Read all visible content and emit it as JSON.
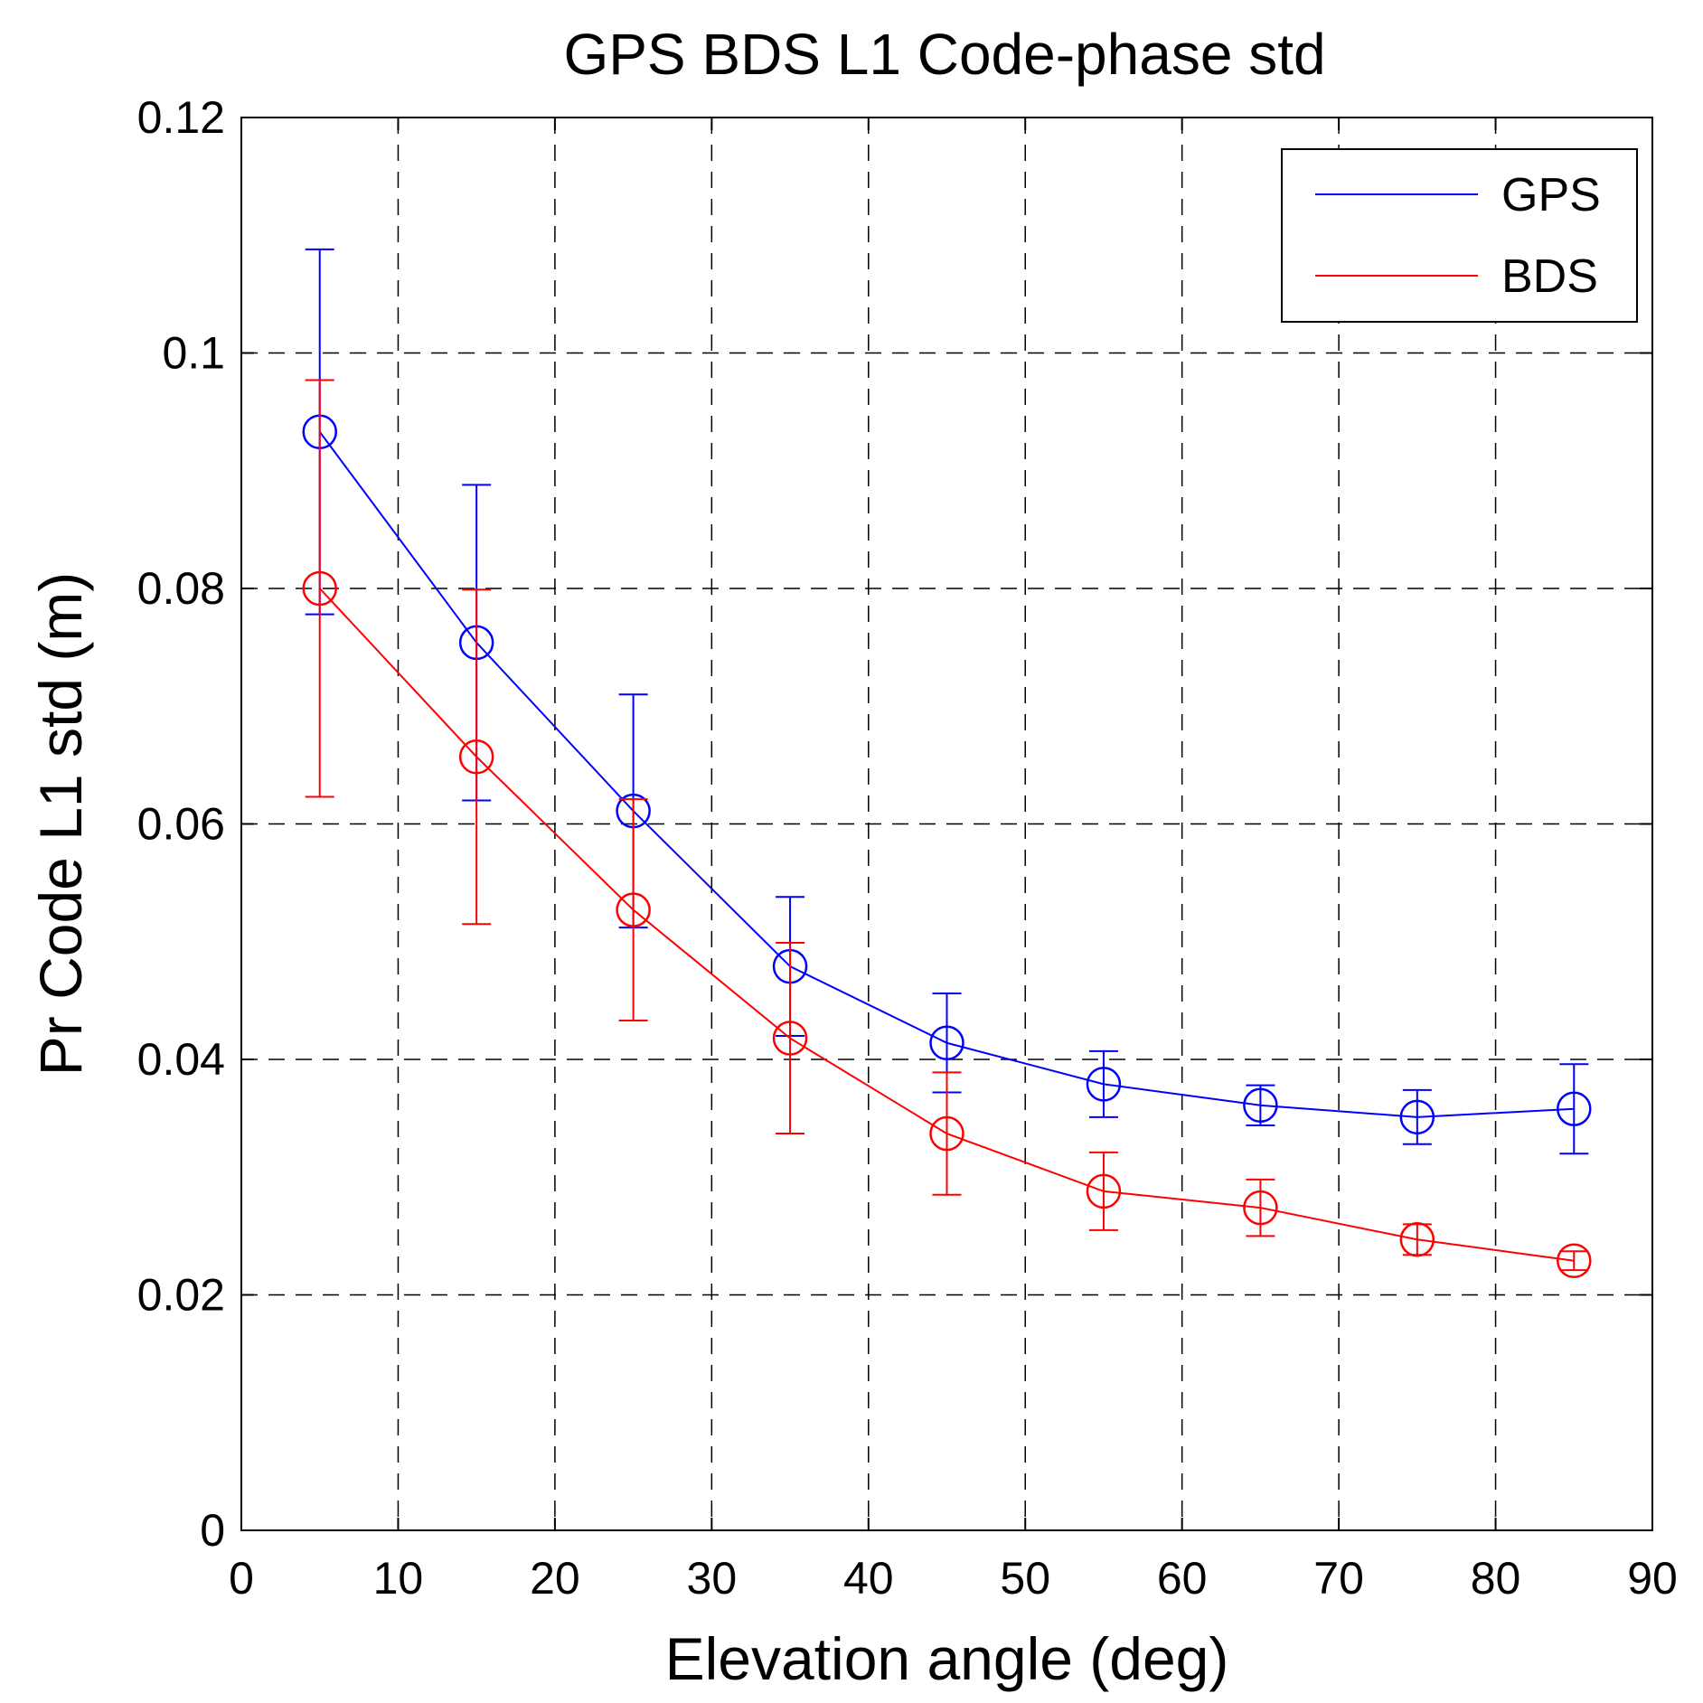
{
  "chart_data": {
    "type": "line",
    "title": "GPS BDS L1 Code-phase std",
    "xlabel": "Elevation angle (deg)",
    "ylabel": "Pr Code L1 std (m)",
    "xlim": [
      0,
      90
    ],
    "ylim": [
      0,
      0.12
    ],
    "xticks": [
      0,
      10,
      20,
      30,
      40,
      50,
      60,
      70,
      80,
      90
    ],
    "yticks": [
      0,
      0.02,
      0.04,
      0.06,
      0.08,
      0.1,
      0.12
    ],
    "xtick_labels": [
      "0",
      "10",
      "20",
      "30",
      "40",
      "50",
      "60",
      "70",
      "80",
      "90"
    ],
    "ytick_labels": [
      "0",
      "0.02",
      "0.04",
      "0.06",
      "0.08",
      "0.1",
      "0.12"
    ],
    "grid": true,
    "legend_position": "top-right",
    "marker": "circle",
    "error_bars": true,
    "x": [
      5,
      15,
      25,
      35,
      45,
      55,
      65,
      75,
      85
    ],
    "series": [
      {
        "name": "GPS",
        "color": "#0000ff",
        "values": [
          0.0933,
          0.0754,
          0.0611,
          0.0479,
          0.0414,
          0.0379,
          0.0361,
          0.0351,
          0.0358
        ],
        "err": [
          0.0155,
          0.0134,
          0.0099,
          0.0059,
          0.0042,
          0.0028,
          0.0017,
          0.0023,
          0.0038
        ]
      },
      {
        "name": "BDS",
        "color": "#ff0000",
        "values": [
          0.08,
          0.0657,
          0.0527,
          0.0418,
          0.0337,
          0.0288,
          0.0274,
          0.0247,
          0.0229
        ],
        "err": [
          0.0177,
          0.0142,
          0.0094,
          0.0081,
          0.0052,
          0.0033,
          0.0024,
          0.0013,
          0.0008
        ]
      }
    ]
  }
}
